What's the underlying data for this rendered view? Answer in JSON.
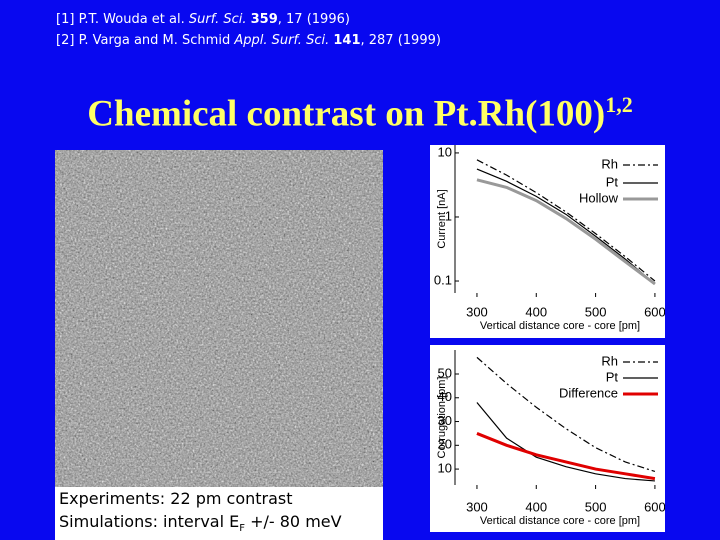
{
  "references": [
    {
      "label": "[1]",
      "authors": "P.T. Wouda et al.",
      "journal": "Surf. Sci.",
      "volume": "359",
      "rest": ", 17 (1996)"
    },
    {
      "label": "[2]",
      "authors": "P. Varga and M. Schmid",
      "journal": "Appl. Surf. Sci.",
      "volume": "141",
      "rest": ", 287 (1999)"
    }
  ],
  "title": {
    "text": "Chemical contrast on Pt.Rh(100)",
    "superscript": "1,2"
  },
  "caption": {
    "line1": "Experiments: 22 pm contrast",
    "line2_start": "Simulations: interval E",
    "line2_sub": "F",
    "line2_end": " +/- 80 meV"
  },
  "charts": [
    {
      "type": "line",
      "xlabel": "Vertical distance core - core [pm]",
      "ylabel": "Current [nA]",
      "ylog": true,
      "x": [
        300,
        350,
        400,
        450,
        500,
        550,
        600
      ],
      "xlim": [
        263,
        617
      ],
      "xticks": [
        300,
        400,
        500,
        600
      ],
      "ylim": [
        0.065,
        13.3
      ],
      "yticks": [
        10,
        1,
        0.1
      ],
      "series": [
        {
          "name": "Rh",
          "color": "#000000",
          "dash": "dashdot",
          "values": [
            7.8,
            4.5,
            2.4,
            1.2,
            0.55,
            0.24,
            0.1
          ]
        },
        {
          "name": "Pt",
          "color": "#000000",
          "dash": "solid",
          "values": [
            5.6,
            3.6,
            2.1,
            1.1,
            0.5,
            0.22,
            0.09
          ]
        },
        {
          "name": "Hollow",
          "color": "#999999",
          "dash": "solid",
          "values": [
            3.8,
            2.9,
            1.8,
            0.95,
            0.45,
            0.2,
            0.09
          ]
        }
      ]
    },
    {
      "type": "line",
      "xlabel": "Vertical distance core - core [pm]",
      "ylabel": "Corrugation [pm]",
      "ylog": false,
      "x": [
        300,
        350,
        400,
        450,
        500,
        550,
        600
      ],
      "xlim": [
        263,
        617
      ],
      "xticks": [
        300,
        400,
        500,
        600
      ],
      "ylim": [
        3.3,
        60.1
      ],
      "yticks": [
        50,
        40,
        30,
        20,
        10
      ],
      "series": [
        {
          "name": "Rh",
          "color": "#000000",
          "dash": "dashdot",
          "values": [
            57,
            46,
            36,
            27,
            19,
            13,
            9
          ]
        },
        {
          "name": "Pt",
          "color": "#000000",
          "dash": "solid",
          "values": [
            38,
            23,
            15,
            11,
            8,
            6,
            5
          ]
        },
        {
          "name": "Difference",
          "color": "#e00000",
          "dash": "solid",
          "values": [
            25,
            20,
            16,
            13,
            10,
            8,
            6
          ]
        }
      ]
    }
  ]
}
